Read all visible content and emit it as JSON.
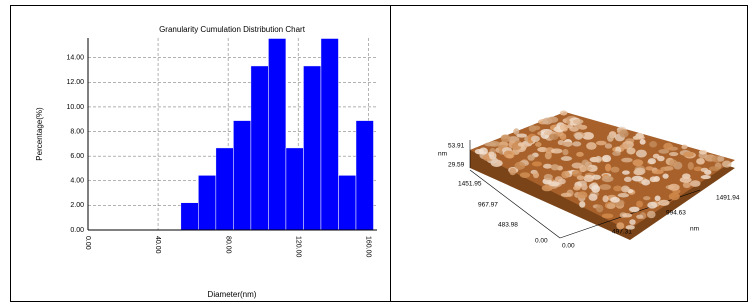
{
  "chart_data": {
    "type": "histogram",
    "title": "Granularity Cumulation Distribution  Chart",
    "x_label": "Diameter(nm)",
    "y_label": "Percentage(%)",
    "bins": [
      53,
      63,
      73,
      83,
      93,
      103,
      113,
      123,
      133,
      143,
      153,
      163
    ],
    "values": [
      2.22,
      4.44,
      6.67,
      8.89,
      13.33,
      15.56,
      6.67,
      13.33,
      15.56,
      4.44,
      8.89
    ],
    "color": "#0000ff",
    "xlim": [
      0,
      165
    ],
    "xticks": [
      {
        "value": 0,
        "label": "0.00"
      },
      {
        "value": 40,
        "label": "40.00"
      },
      {
        "value": 80,
        "label": "80.00"
      },
      {
        "value": 120,
        "label": "120.00"
      },
      {
        "value": 160,
        "label": "160.00"
      }
    ],
    "ylim": [
      0,
      15.6
    ],
    "yticks": [
      {
        "value": 0,
        "label": "0.00"
      },
      {
        "value": 2,
        "label": "2.00"
      },
      {
        "value": 4,
        "label": "4.00"
      },
      {
        "value": 6,
        "label": "6.00"
      },
      {
        "value": 8,
        "label": "8.00"
      },
      {
        "value": 10,
        "label": "10.00"
      },
      {
        "value": 12,
        "label": "12.00"
      },
      {
        "value": 14,
        "label": "14.00"
      }
    ],
    "grid": true
  },
  "afm_image": {
    "z_max": "53.91",
    "z_unit": "nm",
    "z_mid": "29.59",
    "y_ticks": [
      "1451.95",
      "967.97",
      "483.98",
      "0.00"
    ],
    "x_ticks": [
      "0.00",
      "497.31",
      "994.63",
      "1491.94"
    ],
    "xy_unit": "nm"
  }
}
